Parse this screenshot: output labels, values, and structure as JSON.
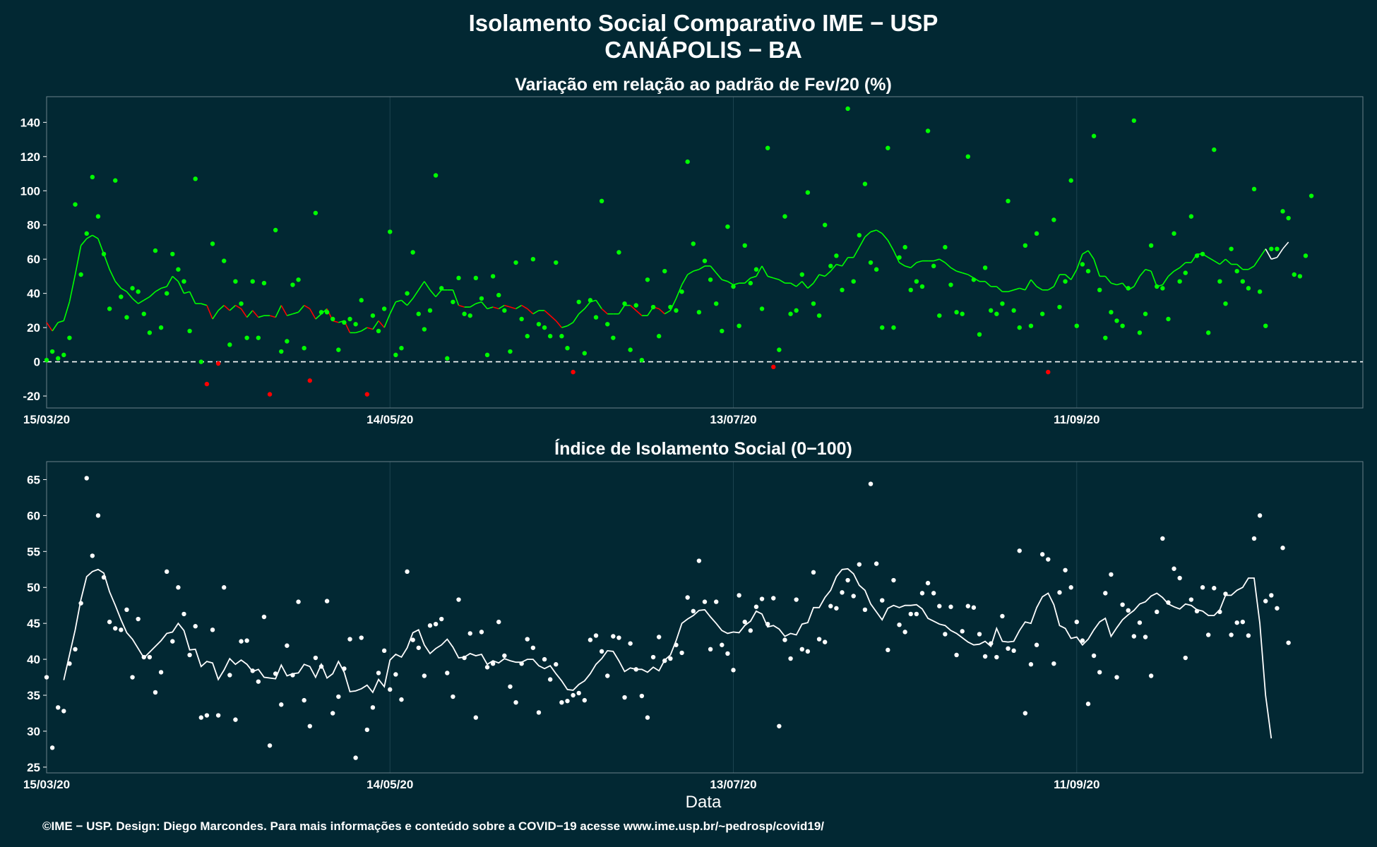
{
  "title_line1": "Isolamento Social Comparativo IME − USP",
  "title_line2": "CANÁPOLIS − BA",
  "footer": "©IME − USP. Design: Diego Marcondes. Para mais informações e conteúdo sobre a COVID−19 acesse www.ime.usp.br/~pedrosp/covid19/",
  "xlabel": "Data",
  "colors": {
    "background": "#022833",
    "positive": "#00ff00",
    "negative": "#ff0000",
    "index": "#ffffff",
    "grid": "#1d4450",
    "zero_line": "#ffffff"
  },
  "chart_data": [
    {
      "type": "scatter",
      "title": "Variação em relação ao padrão de Fev/20 (%)",
      "x_start": "2020-03-15",
      "x_ticks": [
        {
          "date": "2020-03-15",
          "label": "15/03/20"
        },
        {
          "date": "2020-05-14",
          "label": "14/05/20"
        },
        {
          "date": "2020-07-13",
          "label": "13/07/20"
        },
        {
          "date": "2020-09-11",
          "label": "11/09/20"
        }
      ],
      "xlim": [
        "2020-03-15",
        "2020-10-31"
      ],
      "ylim": [
        -27,
        155
      ],
      "y_ticks": [
        -20,
        0,
        20,
        40,
        60,
        80,
        100,
        120,
        140
      ],
      "zero_line": true,
      "series": [
        {
          "kind": "points",
          "values": [
            1,
            6,
            2,
            4,
            14,
            92,
            51,
            75,
            108,
            85,
            63,
            31,
            106,
            38,
            26,
            43,
            41,
            28,
            17,
            65,
            20,
            40,
            63,
            54,
            47,
            18,
            107,
            0,
            -13,
            69,
            -1,
            59,
            10,
            47,
            34,
            14,
            47,
            14,
            46,
            -19,
            77,
            6,
            12,
            45,
            48,
            8,
            -11,
            87,
            29,
            29,
            25,
            7,
            23,
            25,
            22,
            36,
            -19,
            27,
            18,
            31,
            76,
            4,
            8,
            40,
            64,
            28,
            19,
            30,
            109,
            43,
            2,
            35,
            49,
            28,
            27,
            49,
            37,
            4,
            50,
            39,
            30,
            6,
            58,
            25,
            15,
            60,
            22,
            20,
            15,
            58,
            15,
            8,
            -6,
            35,
            5,
            36,
            26,
            94,
            22,
            14,
            64,
            34,
            7,
            33,
            1,
            48,
            32,
            15,
            53,
            32,
            30,
            41,
            117,
            69,
            29,
            59,
            48,
            34,
            18,
            79,
            44,
            21,
            68,
            46,
            54,
            31,
            125,
            -3,
            7,
            85,
            28,
            30,
            51,
            99,
            34,
            27,
            80,
            56,
            62,
            42,
            148,
            47,
            74,
            104,
            58,
            54,
            20,
            125,
            20,
            61,
            67,
            42,
            47,
            44,
            135,
            56,
            27,
            67,
            45,
            29,
            28,
            120,
            48,
            16,
            55,
            30,
            28,
            34,
            94,
            30,
            20,
            68,
            21,
            75,
            28,
            -6,
            83,
            32,
            47,
            106,
            21,
            57,
            53,
            132,
            42,
            14,
            29,
            24,
            21,
            43,
            141,
            17,
            28,
            68,
            44,
            43,
            25,
            75,
            47,
            52,
            85,
            62,
            63,
            17,
            124,
            47,
            34,
            66,
            53,
            47,
            43,
            101,
            41,
            21,
            66,
            66,
            88,
            84,
            51,
            50,
            62,
            97
          ]
        },
        {
          "kind": "moving_average",
          "values": [
            23,
            18,
            23,
            24,
            35,
            51,
            68,
            72,
            74,
            72,
            63,
            54,
            47,
            43,
            41,
            37,
            34,
            36,
            38,
            41,
            43,
            44,
            50,
            47,
            40,
            41,
            34,
            34,
            33,
            25,
            30,
            33,
            30,
            33,
            31,
            26,
            30,
            26,
            27,
            27,
            26,
            33,
            27,
            28,
            29,
            33,
            31,
            25,
            28,
            31,
            24,
            23,
            24,
            17,
            17,
            18,
            20,
            19,
            24,
            20,
            28,
            35,
            36,
            33,
            37,
            42,
            47,
            42,
            38,
            42,
            42,
            42,
            33,
            32,
            32,
            34,
            35,
            31,
            32,
            31,
            33,
            32,
            31,
            33,
            31,
            28,
            30,
            30,
            27,
            24,
            20,
            21,
            23,
            28,
            31,
            35,
            36,
            31,
            28,
            28,
            28,
            33,
            33,
            30,
            27,
            27,
            32,
            31,
            28,
            30,
            37,
            45,
            51,
            53,
            54,
            56,
            56,
            52,
            48,
            47,
            45,
            46,
            46,
            49,
            50,
            56,
            50,
            49,
            48,
            46,
            46,
            44,
            47,
            43,
            46,
            51,
            50,
            53,
            57,
            56,
            61,
            61,
            67,
            73,
            76,
            77,
            75,
            71,
            65,
            58,
            56,
            55,
            58,
            59,
            59,
            59,
            60,
            58,
            55,
            53,
            52,
            51,
            49,
            47,
            47,
            44,
            44,
            41,
            41,
            42,
            43,
            42,
            48,
            44,
            42,
            42,
            44,
            51,
            51,
            48,
            54,
            63,
            65,
            60,
            50,
            50,
            46,
            45,
            46,
            42,
            44,
            50,
            54,
            53,
            44,
            45,
            50,
            53,
            55,
            58,
            58,
            63,
            63,
            61,
            59,
            57,
            60,
            57,
            57,
            54,
            54,
            56,
            61,
            66,
            60,
            61,
            66,
            70
          ]
        }
      ]
    },
    {
      "type": "scatter",
      "title": "Índice de Isolamento Social (0−100)",
      "x_start": "2020-03-15",
      "x_ticks": [
        {
          "date": "2020-03-15",
          "label": "15/03/20"
        },
        {
          "date": "2020-05-14",
          "label": "14/05/20"
        },
        {
          "date": "2020-07-13",
          "label": "13/07/20"
        },
        {
          "date": "2020-09-11",
          "label": "11/09/20"
        }
      ],
      "xlim": [
        "2020-03-15",
        "2020-10-31"
      ],
      "ylim": [
        24.2,
        67.5
      ],
      "y_ticks": [
        25,
        30,
        35,
        40,
        45,
        50,
        55,
        60,
        65
      ],
      "series": [
        {
          "kind": "points",
          "values": [
            37.5,
            27.7,
            33.3,
            32.8,
            39.4,
            41.4,
            47.8,
            65.2,
            54.4,
            60.0,
            51.4,
            45.2,
            44.3,
            44.1,
            46.9,
            37.5,
            45.6,
            40.3,
            40.3,
            35.4,
            38.2,
            52.2,
            42.5,
            50.0,
            46.3,
            40.6,
            44.6,
            31.9,
            32.2,
            44.1,
            32.2,
            50.0,
            37.8,
            31.6,
            42.5,
            42.6,
            38.4,
            36.9,
            45.9,
            28.0,
            38.0,
            33.7,
            41.9,
            37.8,
            48.0,
            34.3,
            30.7,
            40.2,
            39.0,
            48.1,
            32.5,
            34.8,
            38.7,
            42.8,
            26.3,
            43.0,
            30.2,
            33.3,
            38.1,
            41.2,
            35.8,
            37.9,
            34.4,
            52.2,
            42.7,
            41.6,
            37.7,
            44.7,
            44.9,
            45.6,
            38.1,
            34.8,
            48.3,
            40.2,
            43.6,
            31.9,
            43.8,
            38.9,
            39.4,
            45.2,
            40.5,
            36.2,
            34.0,
            39.4,
            42.8,
            41.6,
            32.6,
            40.0,
            37.2,
            39.3,
            34.0,
            34.2,
            35.0,
            35.3,
            34.3,
            42.7,
            43.3,
            41.1,
            37.7,
            43.2,
            43.0,
            34.7,
            42.2,
            38.6,
            34.9,
            31.9,
            40.3,
            43.1,
            39.8,
            40.1,
            42.0,
            40.9,
            48.6,
            46.7,
            53.7,
            48.0,
            41.4,
            48.0,
            42.0,
            40.8,
            38.5,
            48.9,
            45.2,
            44.0,
            47.3,
            48.4,
            44.9,
            48.5,
            30.7,
            42.7,
            40.1,
            48.3,
            41.4,
            41.1,
            52.1,
            42.8,
            42.4,
            47.4,
            47.1,
            49.3,
            51.0,
            48.8,
            53.2,
            46.9,
            64.4,
            53.3,
            48.2,
            41.3,
            51.0,
            44.8,
            43.8,
            46.3,
            46.3,
            49.2,
            50.6,
            49.2,
            47.4,
            43.5,
            47.3,
            40.6,
            43.9,
            47.4,
            47.2,
            43.5,
            40.4,
            42.2,
            40.3,
            46.0,
            41.5,
            41.2,
            55.1,
            32.5,
            39.3,
            42.0,
            54.6,
            53.9,
            39.4,
            49.3,
            52.4,
            50.0,
            45.2,
            42.6,
            33.8,
            40.5,
            38.2,
            49.2,
            51.8,
            37.5,
            47.6,
            46.8,
            43.2,
            45.1,
            43.1,
            37.7,
            46.6,
            56.8,
            47.9,
            52.6,
            51.3,
            40.2,
            48.3,
            46.7,
            50.0,
            43.4,
            49.9,
            46.6,
            49.1,
            43.4,
            45.1,
            45.2,
            43.3,
            56.8,
            60.0,
            48.1,
            48.9,
            47.1,
            55.5,
            42.3
          ]
        },
        {
          "kind": "moving_average",
          "values": [
            null,
            null,
            null,
            37.1,
            40.6,
            44.1,
            48.3,
            51.5,
            52.2,
            52.5,
            52.0,
            49.4,
            47.5,
            45.5,
            43.7,
            42.8,
            41.5,
            40.2,
            41.0,
            41.8,
            42.6,
            43.6,
            43.8,
            45.0,
            44.0,
            41.3,
            41.4,
            39.0,
            39.7,
            39.5,
            37.2,
            38.5,
            40.1,
            39.3,
            39.9,
            39.3,
            38.3,
            38.6,
            37.5,
            37.4,
            37.3,
            39.2,
            37.7,
            38.0,
            38.1,
            39.3,
            39.0,
            37.5,
            39.3,
            37.4,
            38.0,
            39.7,
            38.2,
            35.5,
            35.6,
            35.9,
            36.4,
            35.4,
            37.2,
            36.2,
            39.9,
            40.7,
            40.3,
            41.6,
            43.7,
            44.1,
            42.0,
            40.8,
            41.5,
            42.0,
            42.8,
            41.7,
            40.2,
            40.3,
            40.8,
            40.5,
            40.7,
            39.3,
            39.8,
            39.5,
            40.1,
            39.8,
            39.6,
            39.6,
            40.0,
            40.0,
            39.1,
            38.7,
            39.1,
            38.0,
            37.0,
            35.8,
            35.7,
            36.5,
            37.0,
            38.0,
            39.3,
            40.1,
            41.2,
            41.1,
            39.8,
            38.3,
            38.8,
            38.6,
            38.6,
            38.2,
            38.9,
            38.4,
            39.9,
            40.6,
            42.6,
            45.0,
            45.6,
            46.1,
            46.8,
            46.9,
            45.9,
            45.0,
            44.0,
            43.6,
            43.8,
            43.7,
            44.7,
            45.3,
            46.7,
            46.3,
            44.5,
            44.7,
            44.2,
            43.2,
            43.6,
            43.4,
            44.9,
            45.1,
            47.2,
            47.2,
            48.6,
            49.6,
            51.5,
            52.5,
            52.6,
            51.9,
            50.3,
            49.6,
            47.7,
            46.6,
            45.5,
            47.1,
            47.5,
            47.2,
            47.5,
            47.5,
            47.6,
            47.0,
            45.7,
            45.3,
            44.9,
            44.7,
            44.0,
            43.6,
            43.0,
            42.4,
            42.0,
            42.1,
            42.5,
            41.8,
            44.3,
            42.5,
            42.4,
            42.5,
            44.0,
            45.2,
            45.0,
            47.2,
            48.7,
            49.2,
            47.6,
            44.7,
            44.3,
            42.9,
            43.1,
            42.0,
            42.8,
            44.1,
            45.2,
            45.7,
            43.2,
            44.4,
            45.5,
            46.2,
            46.8,
            47.7,
            48.0,
            48.8,
            49.2,
            48.6,
            47.7,
            47.3,
            47.0,
            47.7,
            47.5,
            46.9,
            46.7,
            46.1,
            46.1,
            46.9,
            48.9,
            48.9,
            49.6,
            50.0,
            51.3,
            51.3,
            45.0,
            35.0,
            29.0
          ]
        }
      ]
    }
  ]
}
